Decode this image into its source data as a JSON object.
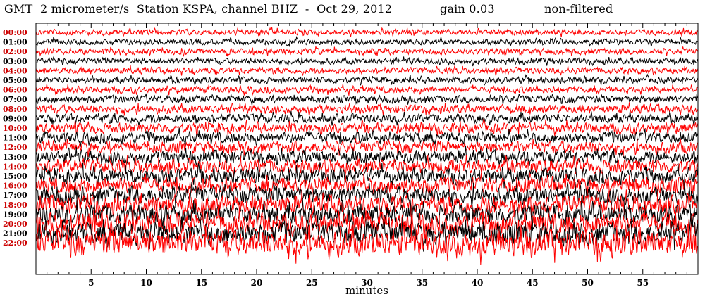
{
  "header": {
    "left": "GMT  2 micrometer/s  Station KSPA, channel BHZ  -  Oct 29, 2012",
    "gain": "gain 0.03",
    "filter": "non-filtered"
  },
  "chart_data": {
    "type": "line",
    "title": "",
    "xlabel": "minutes",
    "ylabel": "",
    "xlim": [
      0,
      60
    ],
    "x_ticks": [
      5,
      10,
      15,
      20,
      25,
      30,
      35,
      40,
      45,
      50,
      55
    ],
    "hour_labels": [
      "00:00",
      "01:00",
      "02:00",
      "03:00",
      "04:00",
      "05:00",
      "06:00",
      "07:00",
      "08:00",
      "09:00",
      "10:00",
      "11:00",
      "12:00",
      "13:00",
      "14:00",
      "15:00",
      "16:00",
      "17:00",
      "18:00",
      "19:00",
      "20:00",
      "21:00",
      "22:00"
    ],
    "trace_colors": [
      "#ff0000",
      "#000000"
    ],
    "label_colors": [
      "#cc0000",
      "#000000"
    ],
    "relative_amplitude": [
      1.0,
      1.0,
      1.05,
      1.05,
      1.1,
      1.1,
      1.2,
      1.3,
      1.45,
      1.6,
      1.8,
      2.0,
      2.1,
      2.3,
      2.5,
      2.7,
      2.9,
      3.1,
      3.3,
      3.5,
      3.8,
      4.0,
      4.5
    ]
  }
}
